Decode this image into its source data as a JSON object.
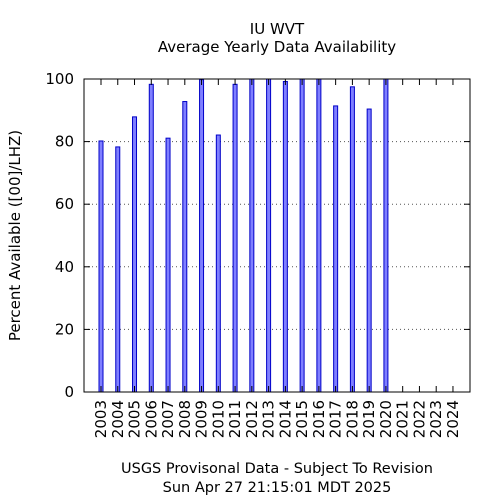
{
  "chart_data": {
    "type": "bar",
    "title": "IU WVT",
    "subtitle": "Average Yearly Data Availability",
    "xlabel": "",
    "ylabel": "Percent Available ([00]/LHZ)",
    "ylim": [
      0,
      100
    ],
    "yticks": [
      0,
      20,
      40,
      60,
      80,
      100
    ],
    "grid": true,
    "colors": {
      "bar_fill": "#7f7fff",
      "bar_stroke": "#0000c8"
    },
    "categories": [
      "2003",
      "2004",
      "2005",
      "2006",
      "2007",
      "2008",
      "2009",
      "2010",
      "2011",
      "2012",
      "2013",
      "2014",
      "2015",
      "2016",
      "2017",
      "2018",
      "2019",
      "2020",
      "2021",
      "2022",
      "2023",
      "2024"
    ],
    "values": [
      80.2,
      78.3,
      87.9,
      98.3,
      81.1,
      92.8,
      99.8,
      82.1,
      98.3,
      100,
      100,
      99.2,
      100,
      100,
      91.4,
      97.5,
      90.4,
      100,
      null,
      null,
      null,
      null
    ]
  },
  "footer": {
    "line1": "USGS Provisonal Data - Subject To Revision",
    "line2": "Sun Apr 27 21:15:01 MDT 2025"
  }
}
